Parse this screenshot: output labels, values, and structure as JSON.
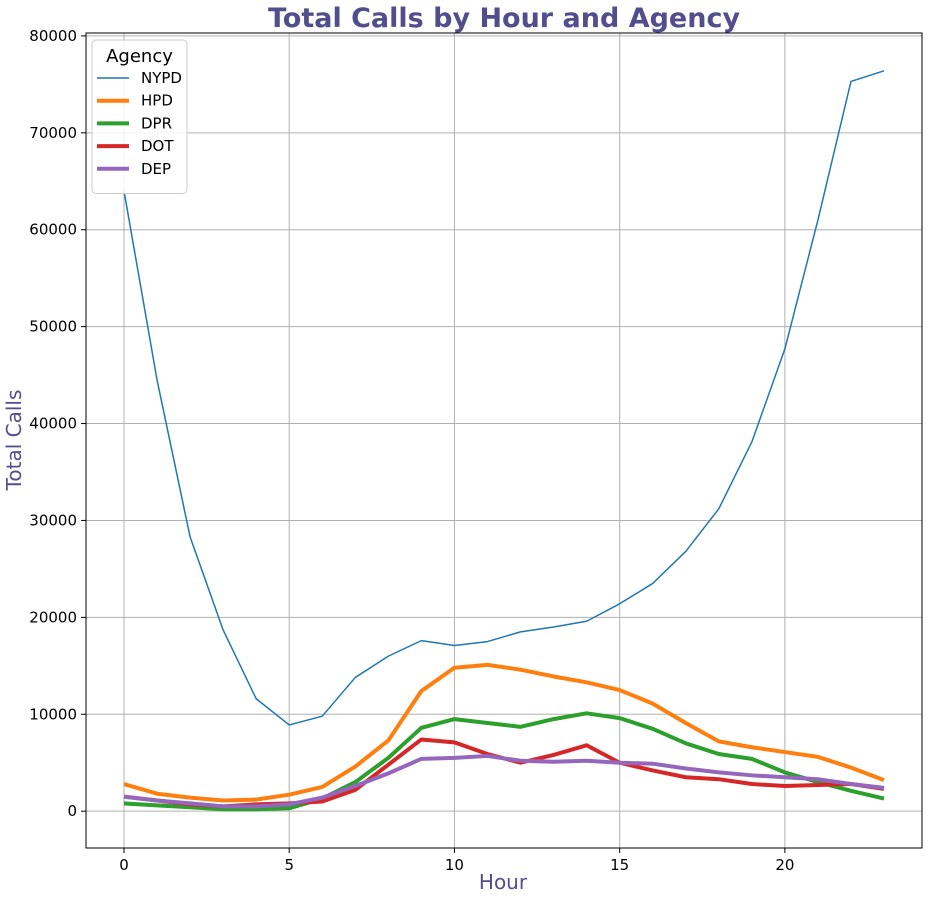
{
  "chart_data": {
    "type": "line",
    "title": "Total Calls by Hour and Agency",
    "xlabel": "Hour",
    "ylabel": "Total Calls",
    "xlim": [
      -1.15,
      24.15
    ],
    "ylim": [
      -3800,
      80300
    ],
    "xticks": [
      0,
      5,
      10,
      15,
      20
    ],
    "yticks": [
      0,
      10000,
      20000,
      30000,
      40000,
      50000,
      60000,
      70000,
      80000
    ],
    "grid": true,
    "legend": {
      "title": "Agency",
      "placement": "top-left"
    },
    "title_color": "#524E8E",
    "label_color": "#524E8E",
    "x": [
      0,
      1,
      2,
      3,
      4,
      5,
      6,
      7,
      8,
      9,
      10,
      11,
      12,
      13,
      14,
      15,
      16,
      17,
      18,
      19,
      20,
      21,
      22,
      23
    ],
    "series": [
      {
        "name": "NYPD",
        "color": "#1f77b4",
        "width": 1.5,
        "values": [
          64000,
          44500,
          28300,
          18700,
          11600,
          8900,
          9800,
          13800,
          16000,
          17600,
          17100,
          17500,
          18500,
          19000,
          19600,
          21400,
          23500,
          26800,
          31200,
          38100,
          47700,
          61000,
          75300,
          76400
        ]
      },
      {
        "name": "HPD",
        "color": "#ff7f0e",
        "width": 4,
        "values": [
          2800,
          1800,
          1400,
          1100,
          1200,
          1700,
          2500,
          4600,
          7300,
          12400,
          14800,
          15100,
          14600,
          13900,
          13300,
          12500,
          11100,
          9100,
          7200,
          6600,
          6100,
          5600,
          4500,
          3200
        ]
      },
      {
        "name": "DPR",
        "color": "#2ca02c",
        "width": 4,
        "values": [
          800,
          600,
          400,
          200,
          200,
          300,
          1300,
          3000,
          5500,
          8600,
          9500,
          9100,
          8700,
          9500,
          10100,
          9600,
          8500,
          7000,
          5900,
          5400,
          4000,
          3000,
          2100,
          1300
        ]
      },
      {
        "name": "DOT",
        "color": "#d62728",
        "width": 4,
        "values": [
          1500,
          1100,
          700,
          500,
          700,
          800,
          1000,
          2200,
          4800,
          7400,
          7100,
          5900,
          5000,
          5800,
          6800,
          5000,
          4200,
          3500,
          3300,
          2800,
          2600,
          2700,
          2800,
          2300
        ]
      },
      {
        "name": "DEP",
        "color": "#9467bd",
        "width": 4,
        "values": [
          1500,
          1100,
          800,
          500,
          500,
          700,
          1400,
          2600,
          3900,
          5400,
          5500,
          5700,
          5200,
          5100,
          5200,
          5000,
          4900,
          4400,
          4000,
          3700,
          3500,
          3300,
          2800,
          2400
        ]
      }
    ]
  }
}
